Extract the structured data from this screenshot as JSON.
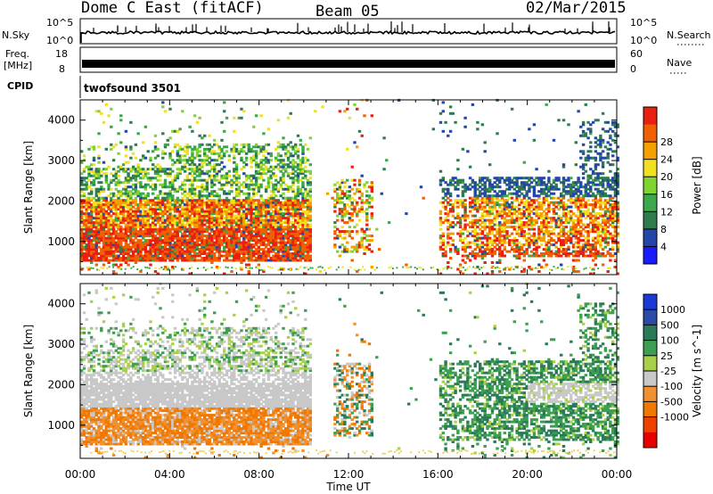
{
  "header": {
    "radar": "Dome C East (fitACF)",
    "beam": "Beam 05",
    "date": "02/Mar/2015"
  },
  "top_panels": {
    "nsky_label": "N.Sky",
    "nsky_ticks": [
      "10^5",
      "10^0"
    ],
    "nsearch_label": "N.Search",
    "nsearch_ticks": [
      "10^5",
      "10^0"
    ],
    "freq_label": "Freq.",
    "freq_unit": "[MHz]",
    "freq_ticks": [
      "18",
      "8"
    ],
    "nave_label": "Nave",
    "nave_ticks": [
      "60",
      "0"
    ],
    "cpid_label": "CPID",
    "cpid_value": "twofsound 3501"
  },
  "colors": {
    "power": [
      "#1a1aff",
      "#2346a8",
      "#2f7b4e",
      "#3ba84a",
      "#7fd432",
      "#f0e020",
      "#f5a000",
      "#f06000",
      "#e82010"
    ],
    "velocity": [
      "#e80000",
      "#f04000",
      "#f07800",
      "#f09030",
      "#c8c8c8",
      "#a8d048",
      "#3ca050",
      "#2a7a5a",
      "#2a4aa8",
      "#1a3ad8"
    ],
    "ground": "#f0d060"
  },
  "chart_data": [
    {
      "type": "heatmap",
      "name": "power",
      "xlabel": "",
      "ylabel": "Slant Range [km]",
      "x_ticks": [
        "00:00",
        "04:00",
        "08:00",
        "12:00",
        "16:00",
        "20:00",
        "00:00"
      ],
      "x_range_hours": [
        0,
        24
      ],
      "y_ticks": [
        1000,
        2000,
        3000,
        4000
      ],
      "y_range_km": [
        180,
        4500
      ],
      "colorbar_label": "Power [dB]",
      "colorbar_ticks": [
        4,
        8,
        12,
        16,
        20,
        24,
        28
      ],
      "echo_regions": [
        {
          "start_hr": 0.1,
          "end_hr": 10.3,
          "range_km": [
            500,
            3400
          ]
        },
        {
          "start_hr": 11.3,
          "end_hr": 13.0,
          "range_km": [
            700,
            2500
          ]
        },
        {
          "start_hr": 16.0,
          "end_hr": 24.0,
          "range_km": [
            400,
            2600
          ]
        }
      ]
    },
    {
      "type": "heatmap",
      "name": "velocity",
      "xlabel": "Time UT",
      "ylabel": "Slant Range [km]",
      "x_ticks": [
        "00:00",
        "04:00",
        "08:00",
        "12:00",
        "16:00",
        "20:00",
        "00:00"
      ],
      "x_range_hours": [
        0,
        24
      ],
      "y_ticks": [
        1000,
        2000,
        3000,
        4000
      ],
      "y_range_km": [
        180,
        4500
      ],
      "colorbar_label": "Velocity [m s^-1]",
      "colorbar_ticks": [
        1000,
        500,
        100,
        25,
        -25,
        -100,
        -500,
        -1000
      ],
      "echo_regions": [
        {
          "start_hr": 0.1,
          "end_hr": 10.3,
          "range_km": [
            500,
            3400
          ]
        },
        {
          "start_hr": 11.3,
          "end_hr": 13.0,
          "range_km": [
            700,
            2500
          ]
        },
        {
          "start_hr": 16.0,
          "end_hr": 24.0,
          "range_km": [
            400,
            2600
          ]
        }
      ]
    }
  ]
}
